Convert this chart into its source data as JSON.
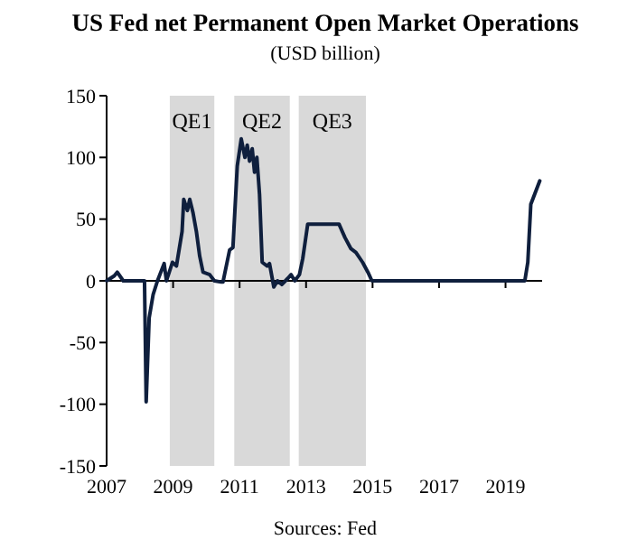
{
  "chart_data": {
    "type": "line",
    "title": "US Fed net Permanent Open Market Operations",
    "subtitle": "(USD billion)",
    "annotations": [
      "Sources: Fed"
    ],
    "xlim": [
      2007,
      2020.1
    ],
    "xticks": [
      2007,
      2009,
      2011,
      2013,
      2015,
      2017,
      2019
    ],
    "ylim": [
      -150,
      150
    ],
    "yticks": [
      -150,
      -100,
      -50,
      0,
      50,
      100,
      150
    ],
    "bands": [
      {
        "axis": "x",
        "from": 2008.9,
        "to": 2010.24,
        "label": "QE1",
        "color": "#d9d9d9"
      },
      {
        "axis": "x",
        "from": 2010.84,
        "to": 2012.51,
        "label": "QE2",
        "color": "#d9d9d9"
      },
      {
        "axis": "x",
        "from": 2012.78,
        "to": 2014.8,
        "label": "QE3",
        "color": "#d9d9d9"
      }
    ],
    "series": [
      {
        "color": "#0f1f3d",
        "x": [
          2007.0,
          2007.23,
          2007.32,
          2007.5,
          2008.14,
          2008.19,
          2008.28,
          2008.4,
          2008.53,
          2008.73,
          2008.8,
          2008.98,
          2009.1,
          2009.27,
          2009.32,
          2009.43,
          2009.5,
          2009.6,
          2009.7,
          2009.8,
          2009.9,
          2010.1,
          2010.24,
          2010.45,
          2010.5,
          2010.7,
          2010.8,
          2010.93,
          2011.05,
          2011.16,
          2011.23,
          2011.3,
          2011.38,
          2011.45,
          2011.52,
          2011.6,
          2011.68,
          2011.83,
          2011.9,
          2012.03,
          2012.14,
          2012.27,
          2012.45,
          2012.55,
          2012.66,
          2012.8,
          2012.9,
          2013.05,
          2013.99,
          2014.17,
          2014.35,
          2014.5,
          2014.7,
          2014.86,
          2014.98,
          2019.58,
          2019.67,
          2019.76,
          2020.03
        ],
        "values": [
          0,
          4,
          7,
          0,
          0,
          -98,
          -30,
          -11,
          0,
          14,
          0,
          15,
          12,
          40,
          66,
          57,
          66,
          55,
          40,
          20,
          7,
          5,
          0,
          -1,
          -1,
          25,
          27,
          93,
          115,
          100,
          110,
          97,
          107,
          88,
          100,
          70,
          15,
          12,
          14,
          -5,
          0,
          -3,
          2,
          5,
          0,
          5,
          18,
          46,
          46,
          35,
          26,
          23,
          15,
          7,
          0,
          0,
          15,
          62,
          81
        ]
      }
    ]
  }
}
